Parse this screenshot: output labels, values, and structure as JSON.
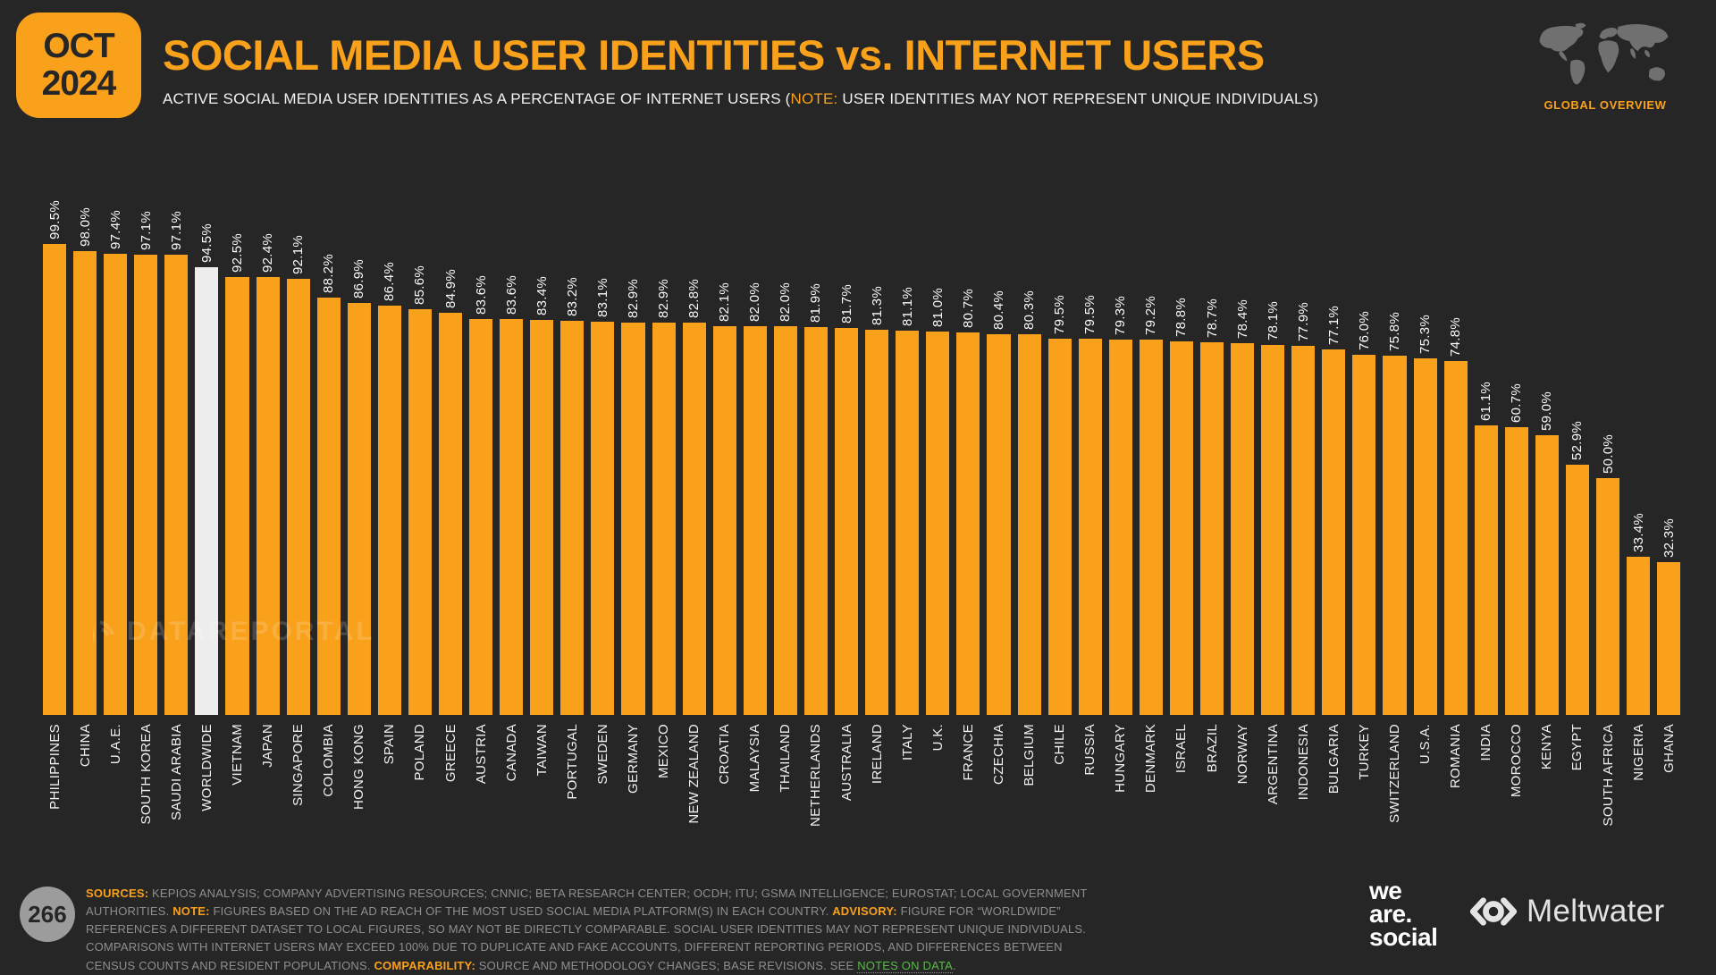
{
  "header": {
    "date_badge": {
      "month": "OCT",
      "year": "2024"
    },
    "title": "SOCIAL MEDIA USER IDENTITIES vs. INTERNET USERS",
    "subtitle_prefix": "ACTIVE SOCIAL MEDIA USER IDENTITIES AS A PERCENTAGE OF INTERNET USERS (",
    "subtitle_note_label": "NOTE:",
    "subtitle_suffix": " USER IDENTITIES MAY NOT REPRESENT UNIQUE INDIVIDUALS)",
    "overview_label": "GLOBAL OVERVIEW",
    "map_icon": "world-map-icon"
  },
  "watermark": "DATAREPORTAL",
  "colors": {
    "accent_orange": "#F9A11B",
    "background": "#262626",
    "bar": "#F9A11B",
    "worldwide_bar": "#EDEDED",
    "footer_text": "#8F8F8F",
    "link_green": "#58B947",
    "map_gray": "#707070"
  },
  "chart_data": {
    "type": "bar",
    "title": "SOCIAL MEDIA USER IDENTITIES vs. INTERNET USERS",
    "subtitle": "ACTIVE SOCIAL MEDIA USER IDENTITIES AS A PERCENTAGE OF INTERNET USERS (NOTE: USER IDENTITIES MAY NOT REPRESENT UNIQUE INDIVIDUALS)",
    "xlabel": "",
    "ylabel": "",
    "ylim": [
      0,
      100
    ],
    "grid": false,
    "legend": "none",
    "bar_color": "#F9A11B",
    "highlight_index": 5,
    "highlight_category": "WORLDWIDE",
    "highlight_color": "#EDEDED",
    "categories": [
      "PHILIPPINES",
      "CHINA",
      "U.A.E.",
      "SOUTH KOREA",
      "SAUDI ARABIA",
      "WORLDWIDE",
      "VIETNAM",
      "JAPAN",
      "SINGAPORE",
      "COLOMBIA",
      "HONG KONG",
      "SPAIN",
      "POLAND",
      "GREECE",
      "AUSTRIA",
      "CANADA",
      "TAIWAN",
      "PORTUGAL",
      "SWEDEN",
      "GERMANY",
      "MEXICO",
      "NEW ZEALAND",
      "CROATIA",
      "MALAYSIA",
      "THAILAND",
      "NETHERLANDS",
      "AUSTRALIA",
      "IRELAND",
      "ITALY",
      "U.K.",
      "FRANCE",
      "CZECHIA",
      "BELGIUM",
      "CHILE",
      "RUSSIA",
      "HUNGARY",
      "DENMARK",
      "ISRAEL",
      "BRAZIL",
      "NORWAY",
      "ARGENTINA",
      "INDONESIA",
      "BULGARIA",
      "TURKEY",
      "SWITZERLAND",
      "U.S.A.",
      "ROMANIA",
      "INDIA",
      "MOROCCO",
      "KENYA",
      "EGYPT",
      "SOUTH AFRICA",
      "NIGERIA",
      "GHANA"
    ],
    "values": [
      99.5,
      98.0,
      97.4,
      97.1,
      97.1,
      94.5,
      92.5,
      92.4,
      92.1,
      88.2,
      86.9,
      86.4,
      85.6,
      84.9,
      83.6,
      83.6,
      83.4,
      83.2,
      83.1,
      82.9,
      82.9,
      82.8,
      82.1,
      82.0,
      82.0,
      81.9,
      81.7,
      81.3,
      81.1,
      81.0,
      80.7,
      80.4,
      80.3,
      79.5,
      79.5,
      79.3,
      79.2,
      78.8,
      78.7,
      78.4,
      78.1,
      77.9,
      77.1,
      76.0,
      75.8,
      75.3,
      74.8,
      61.1,
      60.7,
      59.0,
      52.9,
      50.0,
      33.4,
      32.3
    ],
    "value_labels": [
      "99.5%",
      "98.0%",
      "97.4%",
      "97.1%",
      "97.1%",
      "94.5%",
      "92.5%",
      "92.4%",
      "92.1%",
      "88.2%",
      "86.9%",
      "86.4%",
      "85.6%",
      "84.9%",
      "83.6%",
      "83.6%",
      "83.4%",
      "83.2%",
      "83.1%",
      "82.9%",
      "82.9%",
      "82.8%",
      "82.1%",
      "82.0%",
      "82.0%",
      "81.9%",
      "81.7%",
      "81.3%",
      "81.1%",
      "81.0%",
      "80.7%",
      "80.4%",
      "80.3%",
      "79.5%",
      "79.5%",
      "79.3%",
      "79.2%",
      "78.8%",
      "78.7%",
      "78.4%",
      "78.1%",
      "77.9%",
      "77.1%",
      "76.0%",
      "75.8%",
      "75.3%",
      "74.8%",
      "61.1%",
      "60.7%",
      "59.0%",
      "52.9%",
      "50.0%",
      "33.4%",
      "32.3%"
    ]
  },
  "footer": {
    "page_number": "266",
    "segments": [
      {
        "t": "SOURCES:",
        "s": "label"
      },
      {
        "t": " KEPIOS ANALYSIS; COMPANY ADVERTISING RESOURCES; CNNIC; BETA RESEARCH CENTER; OCDH; ITU; GSMA INTELLIGENCE; EUROSTAT; LOCAL GOVERNMENT AUTHORITIES. ",
        "s": "text"
      },
      {
        "t": "NOTE:",
        "s": "label"
      },
      {
        "t": " FIGURES BASED ON THE AD REACH OF THE MOST USED SOCIAL MEDIA PLATFORM(S) IN EACH COUNTRY. ",
        "s": "text"
      },
      {
        "t": "ADVISORY:",
        "s": "label"
      },
      {
        "t": " FIGURE FOR “WORLDWIDE” REFERENCES A DIFFERENT DATASET TO LOCAL FIGURES, SO MAY NOT BE DIRECTLY COMPARABLE. SOCIAL USER IDENTITIES MAY NOT REPRESENT UNIQUE INDIVIDUALS. COMPARISONS WITH INTERNET USERS MAY EXCEED 100% DUE TO DUPLICATE AND FAKE ACCOUNTS, DIFFERENT REPORTING PERIODS, AND DIFFERENCES BETWEEN CENSUS COUNTS AND RESIDENT POPULATIONS. ",
        "s": "text"
      },
      {
        "t": "COMPARABILITY:",
        "s": "label"
      },
      {
        "t": " SOURCE AND METHODOLOGY CHANGES; BASE REVISIONS. SEE ",
        "s": "text"
      },
      {
        "t": "NOTES ON DATA",
        "s": "link"
      },
      {
        "t": ".",
        "s": "text"
      }
    ],
    "logos": {
      "we_are_social_lines": [
        "we",
        "are.",
        "social"
      ],
      "meltwater": "Meltwater"
    }
  }
}
